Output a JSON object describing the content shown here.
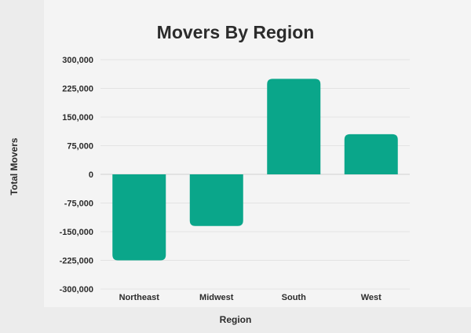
{
  "chart_data": {
    "type": "bar",
    "title": "Movers By Region",
    "xlabel": "Region",
    "ylabel": "Total Movers",
    "categories": [
      "Northeast",
      "Midwest",
      "South",
      "West"
    ],
    "values": [
      -225000,
      -135000,
      250000,
      105000
    ],
    "ylim": [
      -300000,
      300000
    ],
    "yticks": [
      300000,
      225000,
      150000,
      75000,
      0,
      -75000,
      -150000,
      -225000,
      -300000
    ],
    "ytick_labels": [
      "300,000",
      "225,000",
      "150,000",
      "75,000",
      "0",
      "-75,000",
      "-150,000",
      "-225,000",
      "-300,000"
    ],
    "bar_color": "#0aa68a",
    "grid": true,
    "legend": "none"
  }
}
